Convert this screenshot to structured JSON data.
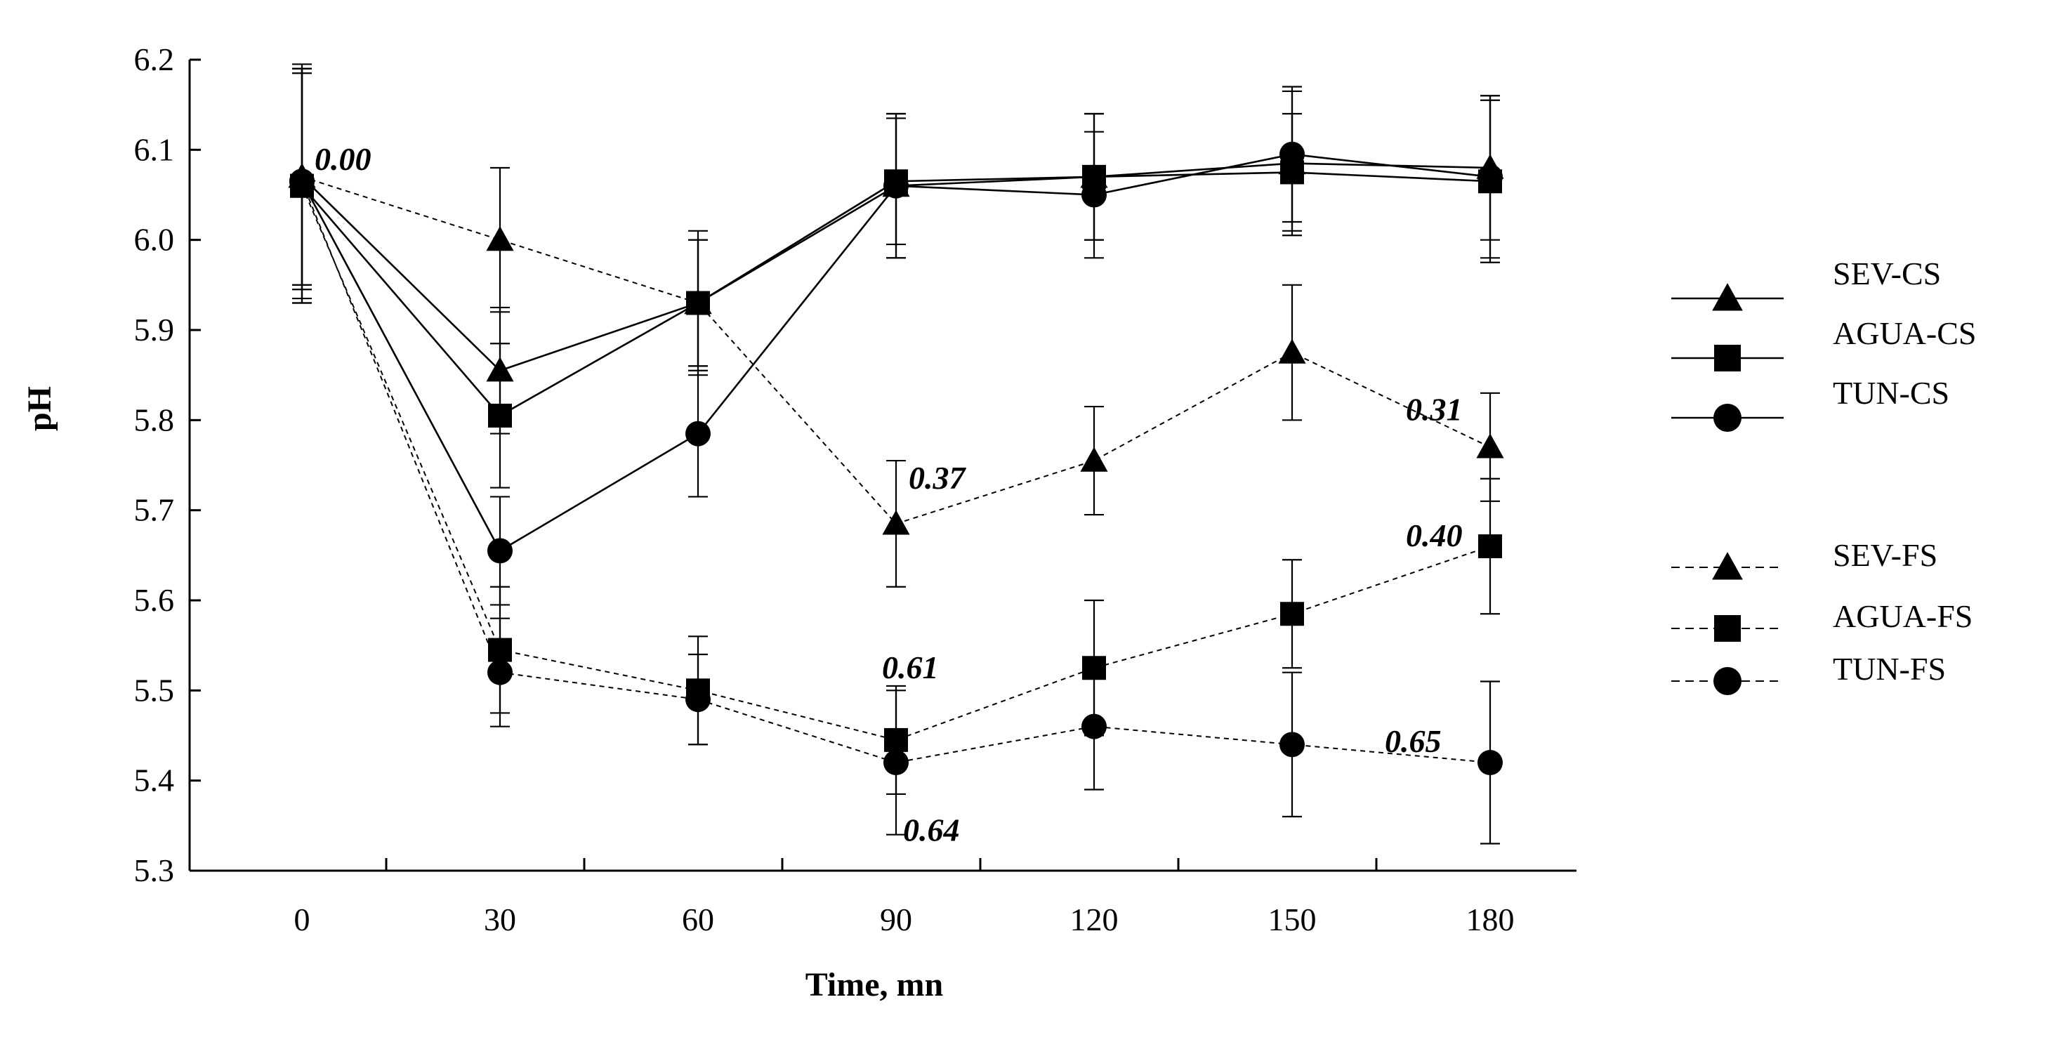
{
  "chart_data": {
    "type": "line",
    "title": "",
    "xlabel": "Time, mn",
    "ylabel": "pH",
    "x": [
      0,
      30,
      60,
      90,
      120,
      150,
      180
    ],
    "x_tick_labels": [
      "0",
      "30",
      "60",
      "90",
      "120",
      "150",
      "180"
    ],
    "ylim": [
      5.3,
      6.2
    ],
    "y_ticks": [
      5.3,
      5.4,
      5.5,
      5.6,
      5.7,
      5.8,
      5.9,
      6.0,
      6.1,
      6.2
    ],
    "y_tick_labels": [
      "5.3",
      "5.4",
      "5.5",
      "5.6",
      "5.7",
      "5.8",
      "5.9",
      "6.0",
      "6.1",
      "6.2"
    ],
    "grid": false,
    "legend_position": "right",
    "series": [
      {
        "name": "SEV-CS",
        "marker": "triangle",
        "line": "solid",
        "values": [
          6.07,
          5.855,
          5.93,
          6.06,
          6.07,
          6.085,
          6.08
        ],
        "errors": [
          0.12,
          0.07,
          0.07,
          0.08,
          0.07,
          0.08,
          0.08
        ]
      },
      {
        "name": "AGUA-CS",
        "marker": "square",
        "line": "solid",
        "values": [
          6.06,
          5.805,
          5.93,
          6.065,
          6.07,
          6.075,
          6.065
        ],
        "errors": [
          0.13,
          0.08,
          0.08,
          0.07,
          0.07,
          0.065,
          0.09
        ]
      },
      {
        "name": "TUN-CS",
        "marker": "circle",
        "line": "solid",
        "values": [
          6.065,
          5.655,
          5.785,
          6.06,
          6.05,
          6.095,
          6.07
        ],
        "errors": [
          0.13,
          0.06,
          0.07,
          0.08,
          0.07,
          0.075,
          0.09
        ]
      },
      {
        "name": "SEV-FS",
        "marker": "triangle",
        "line": "dashed",
        "values": [
          6.07,
          6.0,
          5.93,
          5.685,
          5.755,
          5.875,
          5.77
        ],
        "errors": [
          0.12,
          0.08,
          0.07,
          0.07,
          0.06,
          0.075,
          0.06
        ]
      },
      {
        "name": "AGUA-FS",
        "marker": "square",
        "line": "dashed",
        "values": [
          6.06,
          5.545,
          5.5,
          5.445,
          5.525,
          5.585,
          5.66
        ],
        "errors": [
          0.13,
          0.07,
          0.06,
          0.06,
          0.075,
          0.06,
          0.075
        ]
      },
      {
        "name": "TUN-FS",
        "marker": "circle",
        "line": "dashed",
        "values": [
          6.065,
          5.52,
          5.49,
          5.42,
          5.46,
          5.44,
          5.42
        ],
        "errors": [
          0.12,
          0.06,
          0.05,
          0.08,
          0.07,
          0.08,
          0.09
        ]
      }
    ],
    "annotations": [
      {
        "text": "0.00",
        "x": 0,
        "y": 6.07
      },
      {
        "text": "0.37",
        "x": 90,
        "y": 5.72
      },
      {
        "text": "0.31",
        "x": 180,
        "y": 5.8
      },
      {
        "text": "0.40",
        "x": 180,
        "y": 5.66
      },
      {
        "text": "0.61",
        "x": 90,
        "y": 5.49
      },
      {
        "text": "0.64",
        "x": 90,
        "y": 5.38
      },
      {
        "text": "0.65",
        "x": 180,
        "y": 5.42
      }
    ]
  }
}
